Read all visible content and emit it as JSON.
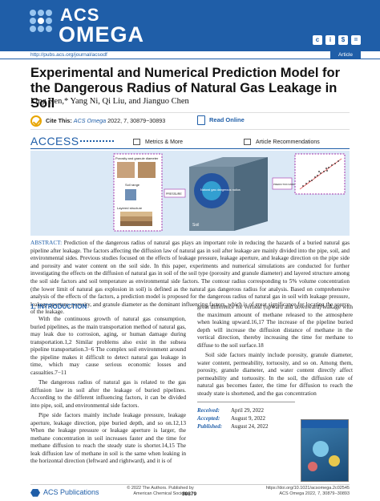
{
  "header": {
    "logo_top": "ACS",
    "logo_bottom": "OMEGA",
    "url": "http://pubs.acs.org/journal/acsodf",
    "article_tag": "Article",
    "oa_icons": [
      "cc-icon",
      "by-icon",
      "nc-icon",
      "nd-icon"
    ]
  },
  "title": "Experimental and Numerical Prediction Model for the Dangerous Radius of Natural Gas Leakage in Soil",
  "authors": "Ling Ren,* Yang Ni, Qi Liu, and Jianguo Chen",
  "cite": {
    "label": "Cite This:",
    "ref": "ACS Omega",
    "rest": " 2022, 7, 30879−30893",
    "read_online": "Read Online"
  },
  "access": {
    "label": "ACCESS",
    "metrics": "Metrics & More",
    "recommendations": "Article Recommendations"
  },
  "graphical_abstract": {
    "box1_title": "Porosity and granule diameter",
    "box1_sub": "Soil range",
    "layered": "Layered structure",
    "pressure": "PRESSURE",
    "leak_label": "Natural gas dangerous radius",
    "soil": "Soil",
    "prediction": "PREDICTION MODEL"
  },
  "abstract": {
    "label": "ABSTRACT:",
    "text": " Prediction of the dangerous radius of natural gas plays an important role in reducing the hazards of a buried natural gas pipeline after leakage. The factors affecting the diffusion law of natural gas in soil after leakage are mainly divided into the pipe, soil, and environmental sides. Previous studies focused on the effects of leakage pressure, leakage aperture, and leakage direction on the pipe side and porosity and water content on the soil side. In this paper, experiments and numerical simulations are conducted for further investigating the effects on the diffusion of natural gas in soil of the soil type (porosity and granule diameter) and layered structure among the soil side factors and soil temperature as environmental side factors. The contour radius corresponding to 5% volume concentration (the lower limit of natural gas explosion in soil) is defined as the natural gas dangerous radius for analysis. Based on comprehensive analysis of the effects of the factors, a prediction model is proposed for the dangerous radius of natural gas in soil with leakage pressure, leakage aperture, porosity, and granule diameter as the dominant influencing factors, which is of great significance for locating the source of the leakage."
  },
  "left_column": {
    "heading": "1. INTRODUCTION",
    "p1": "With the continuous growth of natural gas consumption, buried pipelines, as the main transportation method of natural gas, may leak due to corrosion, aging, or human damage during transportation.1,2 Similar problems also exist in the subsea pipeline transportation.3−6 The complex soil environment around the pipeline makes it difficult to detect natural gas leakage in time, which may cause serious economic losses and casualties.7−11",
    "p2": "The dangerous radius of natural gas is related to the gas diffusion law in soil after the leakage of buried pipelines. According to the different influencing factors, it can be divided into pipe, soil, and environmental side factors.",
    "p3": "Pipe side factors mainly include leakage pressure, leakage aperture, leakage direction, pipe buried depth, and so on.12,13 When the leakage pressure or leakage aperture is larger, the methane concentration in soil increases faster and the time for methane diffusion to reach the steady state is shorter.14,15 The leak diffusion law of methane in soil is the same when leaking in the horizontal direction (leftward and rightward), and it is of"
  },
  "right_column": {
    "p1": "great difference for vertical (upward and downward) leakage with the maximum amount of methane released to the atmosphere when leaking upward.16,17 The increase of the pipeline buried depth will increase the diffusion distance of methane in the vertical direction, thereby increasing the time for methane to diffuse to the soil surface.18",
    "p2": "Soil side factors mainly include porosity, granule diameter, water content, permeability, tortuosity, and so on. Among them, porosity, granule diameter, and water content directly affect permeability and tortuosity. In the soil, the diffusion rate of natural gas becomes faster, the time for diffusion to reach the steady state is shortened, and the gas concentration",
    "received_label": "Received:",
    "received": "April 29, 2022",
    "accepted_label": "Accepted:",
    "accepted": "August 9, 2022",
    "published_label": "Published:",
    "published": "August 24, 2022"
  },
  "footer": {
    "publisher": "ACS Publications",
    "copyright_1": "© 2022 The Authors. Published by",
    "copyright_2": "American Chemical Society",
    "page": "30879",
    "doi": "https://doi.org/10.1021/acsomega.2c02545",
    "journal_ref": "ACS Omega 2022, 7, 30879−30893"
  }
}
